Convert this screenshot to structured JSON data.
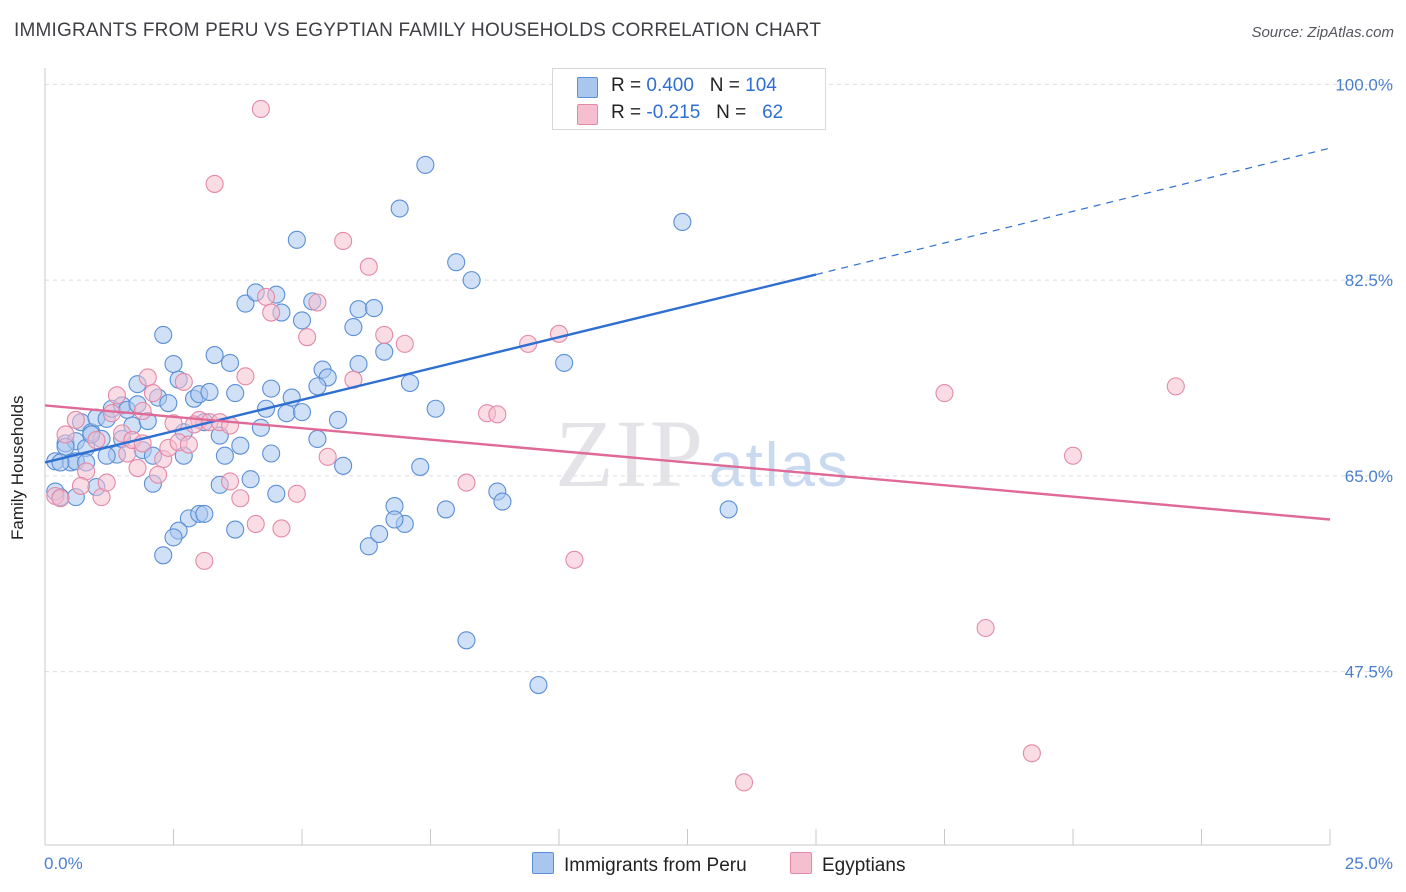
{
  "title": "IMMIGRANTS FROM PERU VS EGYPTIAN FAMILY HOUSEHOLDS CORRELATION CHART",
  "source": "Source: ZipAtlas.com",
  "watermark": {
    "zip": "ZIP",
    "atlas": "atlas"
  },
  "legend_stats": [
    {
      "r_label": "R =",
      "r_value": "0.400",
      "n_label": "N =",
      "n_value": "104",
      "color": "#a9c6ee",
      "border": "#5b8fd6"
    },
    {
      "r_label": "R =",
      "r_value": "-0.215",
      "n_label": "N =",
      "n_value": "62",
      "color": "#f6bfd0",
      "border": "#e38aa8"
    }
  ],
  "chart_data": {
    "type": "scatter",
    "xlabel": "",
    "ylabel": "Family Households",
    "xlim": [
      0,
      25
    ],
    "ylim": [
      32,
      102
    ],
    "x_tick_labels": [
      "0.0%",
      "25.0%"
    ],
    "y_ticks": [
      47.5,
      65.0,
      82.5,
      100.0
    ],
    "y_tick_labels": [
      "47.5%",
      "65.0%",
      "82.5%",
      "100.0%"
    ],
    "grid": true,
    "legend_placement": "bottom-center",
    "series": [
      {
        "name": "Immigrants from Peru",
        "color": "#5b8fd6",
        "fill": "#a9c6ee",
        "trend": {
          "x0": 0,
          "y0": 66.2,
          "x1": 15,
          "y1": 83.0,
          "dash_to_x": 25,
          "dash_to_y": 94.3,
          "color": "#2e6fd1"
        },
        "points": [
          [
            0.2,
            66.3
          ],
          [
            0.3,
            63.1
          ],
          [
            0.4,
            67.9
          ],
          [
            0.5,
            66.2
          ],
          [
            0.6,
            68.1
          ],
          [
            0.7,
            69.8
          ],
          [
            0.8,
            67.5
          ],
          [
            0.9,
            68.9
          ],
          [
            1.0,
            70.2
          ],
          [
            1.1,
            68.3
          ],
          [
            1.2,
            70.1
          ],
          [
            1.3,
            71.0
          ],
          [
            1.4,
            66.9
          ],
          [
            1.5,
            71.3
          ],
          [
            1.6,
            70.9
          ],
          [
            1.7,
            69.5
          ],
          [
            1.8,
            71.4
          ],
          [
            1.9,
            67.3
          ],
          [
            2.0,
            69.9
          ],
          [
            2.1,
            66.8
          ],
          [
            2.2,
            72.0
          ],
          [
            2.3,
            77.6
          ],
          [
            2.4,
            71.5
          ],
          [
            2.5,
            75.0
          ],
          [
            2.6,
            73.6
          ],
          [
            2.7,
            68.9
          ],
          [
            2.8,
            61.2
          ],
          [
            2.9,
            71.9
          ],
          [
            3.0,
            72.3
          ],
          [
            3.1,
            69.8
          ],
          [
            3.2,
            72.5
          ],
          [
            3.3,
            75.8
          ],
          [
            3.4,
            64.2
          ],
          [
            3.5,
            66.8
          ],
          [
            3.6,
            75.1
          ],
          [
            3.7,
            72.4
          ],
          [
            3.8,
            67.7
          ],
          [
            3.9,
            80.4
          ],
          [
            4.0,
            64.7
          ],
          [
            4.1,
            81.4
          ],
          [
            4.2,
            69.3
          ],
          [
            4.3,
            71.0
          ],
          [
            4.4,
            72.8
          ],
          [
            4.5,
            81.2
          ],
          [
            4.6,
            79.6
          ],
          [
            4.7,
            70.6
          ],
          [
            4.8,
            72.0
          ],
          [
            4.9,
            86.1
          ],
          [
            5.0,
            78.9
          ],
          [
            5.2,
            80.6
          ],
          [
            5.3,
            68.3
          ],
          [
            5.4,
            74.5
          ],
          [
            5.5,
            73.8
          ],
          [
            5.7,
            70.0
          ],
          [
            5.8,
            65.9
          ],
          [
            6.0,
            78.3
          ],
          [
            6.1,
            79.9
          ],
          [
            6.3,
            58.7
          ],
          [
            6.4,
            80.0
          ],
          [
            6.6,
            76.1
          ],
          [
            6.8,
            62.3
          ],
          [
            6.9,
            88.9
          ],
          [
            7.1,
            73.3
          ],
          [
            7.4,
            92.8
          ],
          [
            7.6,
            71.0
          ],
          [
            7.8,
            62.0
          ],
          [
            8.0,
            84.1
          ],
          [
            8.2,
            50.3
          ],
          [
            8.3,
            82.5
          ],
          [
            8.8,
            63.6
          ],
          [
            8.9,
            62.7
          ],
          [
            9.6,
            46.3
          ],
          [
            10.1,
            75.1
          ],
          [
            12.4,
            87.7
          ],
          [
            13.3,
            62.0
          ],
          [
            3.0,
            61.6
          ],
          [
            2.6,
            60.1
          ],
          [
            2.3,
            57.9
          ],
          [
            2.1,
            64.3
          ],
          [
            1.5,
            68.3
          ],
          [
            1.2,
            66.8
          ],
          [
            0.9,
            68.7
          ],
          [
            0.6,
            66.3
          ],
          [
            0.4,
            67.6
          ],
          [
            0.3,
            66.2
          ],
          [
            0.2,
            63.6
          ],
          [
            3.7,
            60.2
          ],
          [
            4.5,
            63.4
          ],
          [
            6.1,
            75.0
          ],
          [
            6.5,
            59.8
          ],
          [
            7.0,
            60.7
          ],
          [
            4.4,
            67.0
          ],
          [
            5.3,
            73.0
          ],
          [
            2.5,
            59.5
          ],
          [
            1.8,
            73.2
          ],
          [
            3.1,
            61.6
          ],
          [
            5.0,
            70.7
          ],
          [
            2.7,
            66.8
          ],
          [
            6.8,
            61.1
          ],
          [
            0.6,
            63.1
          ],
          [
            1.0,
            64.0
          ],
          [
            3.4,
            68.6
          ],
          [
            7.3,
            65.8
          ],
          [
            0.8,
            66.2
          ]
        ]
      },
      {
        "name": "Egyptians",
        "color": "#e38aa8",
        "fill": "#f6bfd0",
        "trend": {
          "x0": 0,
          "y0": 71.3,
          "x1": 25,
          "y1": 61.1,
          "color": "#e06a97"
        },
        "points": [
          [
            0.2,
            63.2
          ],
          [
            0.4,
            68.7
          ],
          [
            0.6,
            70.0
          ],
          [
            0.8,
            65.4
          ],
          [
            1.0,
            68.2
          ],
          [
            1.1,
            63.1
          ],
          [
            1.3,
            70.6
          ],
          [
            1.4,
            72.2
          ],
          [
            1.5,
            68.8
          ],
          [
            1.6,
            67.0
          ],
          [
            1.7,
            68.2
          ],
          [
            1.8,
            65.7
          ],
          [
            1.9,
            70.8
          ],
          [
            2.0,
            73.8
          ],
          [
            2.1,
            72.4
          ],
          [
            2.3,
            66.5
          ],
          [
            2.4,
            67.5
          ],
          [
            2.5,
            69.7
          ],
          [
            2.6,
            68.0
          ],
          [
            2.7,
            73.4
          ],
          [
            2.8,
            67.8
          ],
          [
            3.0,
            70.0
          ],
          [
            3.2,
            69.8
          ],
          [
            3.3,
            91.1
          ],
          [
            3.4,
            69.8
          ],
          [
            3.6,
            64.5
          ],
          [
            3.8,
            63.0
          ],
          [
            3.9,
            73.9
          ],
          [
            4.1,
            60.7
          ],
          [
            4.2,
            97.8
          ],
          [
            4.3,
            81.0
          ],
          [
            4.4,
            79.6
          ],
          [
            4.6,
            60.3
          ],
          [
            4.9,
            63.4
          ],
          [
            5.1,
            77.4
          ],
          [
            5.3,
            80.5
          ],
          [
            5.5,
            66.7
          ],
          [
            5.8,
            86.0
          ],
          [
            6.0,
            73.6
          ],
          [
            6.3,
            83.7
          ],
          [
            6.6,
            77.6
          ],
          [
            7.0,
            76.8
          ],
          [
            8.2,
            64.4
          ],
          [
            8.6,
            70.6
          ],
          [
            8.8,
            70.5
          ],
          [
            9.4,
            76.8
          ],
          [
            10.0,
            77.7
          ],
          [
            10.3,
            57.5
          ],
          [
            13.6,
            37.6
          ],
          [
            17.5,
            72.4
          ],
          [
            18.3,
            51.4
          ],
          [
            19.2,
            40.2
          ],
          [
            20.0,
            66.8
          ],
          [
            22.0,
            73.0
          ],
          [
            3.1,
            57.4
          ],
          [
            2.9,
            69.6
          ],
          [
            1.2,
            64.4
          ],
          [
            0.7,
            64.1
          ],
          [
            2.2,
            65.1
          ],
          [
            1.9,
            67.9
          ],
          [
            3.6,
            69.5
          ],
          [
            0.3,
            63.0
          ]
        ]
      }
    ]
  }
}
